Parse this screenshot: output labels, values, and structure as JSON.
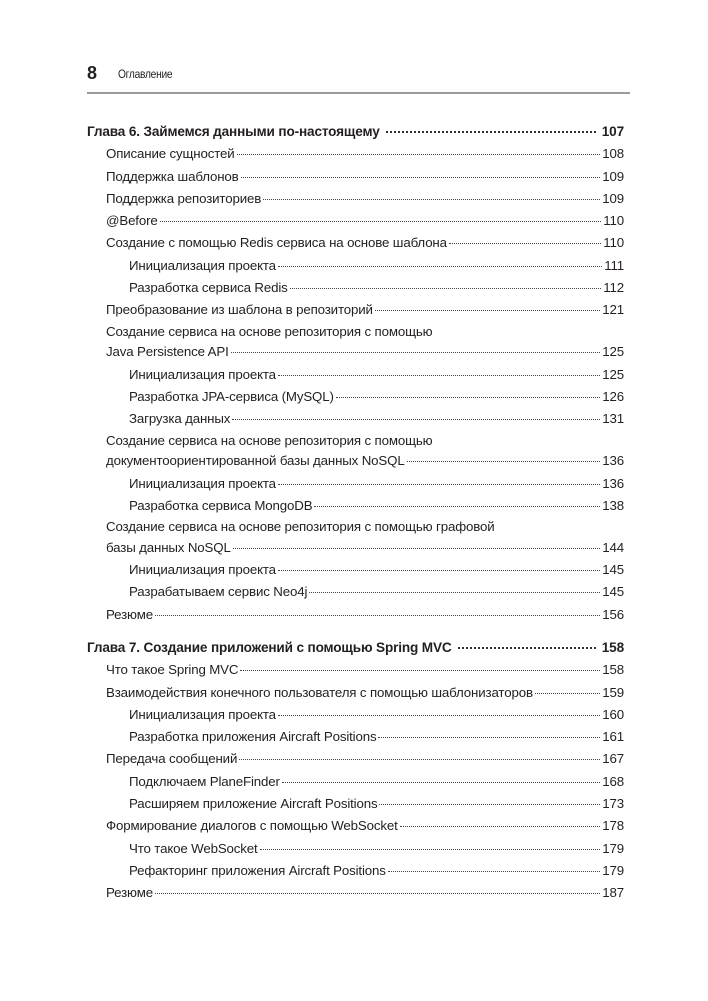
{
  "header": {
    "page_number": "8",
    "running_title": "Оглавление"
  },
  "chapters": [
    {
      "title": "Глава 6. Займемся данными по-настоящему",
      "page": "107",
      "entries": [
        {
          "level": 1,
          "title": "Описание сущностей",
          "page": "108"
        },
        {
          "level": 1,
          "title": "Поддержка шаблонов",
          "page": "109"
        },
        {
          "level": 1,
          "title": "Поддержка репозиториев",
          "page": "109"
        },
        {
          "level": 1,
          "title": "@Before",
          "page": "110"
        },
        {
          "level": 1,
          "title": "Создание с помощью Redis сервиса на основе шаблона",
          "page": "110"
        },
        {
          "level": 2,
          "title": "Инициализация проекта",
          "page": "111"
        },
        {
          "level": 2,
          "title": "Разработка сервиса Redis",
          "page": "112"
        },
        {
          "level": 1,
          "title": "Преобразование из шаблона в репозиторий",
          "page": "121"
        },
        {
          "level": 1,
          "title_line1": "Создание сервиса на основе репозитория с помощью",
          "title": "Java Persistence API",
          "page": "125"
        },
        {
          "level": 2,
          "title": "Инициализация проекта",
          "page": "125"
        },
        {
          "level": 2,
          "title": "Разработка JPA-сервиса (MySQL)",
          "page": "126"
        },
        {
          "level": 2,
          "title": "Загрузка данных",
          "page": "131"
        },
        {
          "level": 1,
          "title_line1": "Создание сервиса на основе репозитория с помощью",
          "title": "документоориентированной базы данных NoSQL",
          "page": "136"
        },
        {
          "level": 2,
          "title": "Инициализация проекта",
          "page": "136"
        },
        {
          "level": 2,
          "title": "Разработка сервиса MongoDB",
          "page": "138"
        },
        {
          "level": 1,
          "title_line1": "Создание сервиса на основе репозитория с помощью графовой",
          "title": "базы данных NoSQL",
          "page": "144"
        },
        {
          "level": 2,
          "title": "Инициализация проекта",
          "page": "145"
        },
        {
          "level": 2,
          "title": "Разрабатываем сервис Neo4j",
          "page": "145"
        },
        {
          "level": 1,
          "title": "Резюме",
          "page": "156"
        }
      ]
    },
    {
      "title": "Глава 7. Создание приложений с помощью Spring MVC",
      "page": "158",
      "entries": [
        {
          "level": 1,
          "title": "Что такое Spring MVC",
          "page": "158"
        },
        {
          "level": 1,
          "title": "Взаимодействия конечного пользователя с помощью шаблонизаторов",
          "page": "159"
        },
        {
          "level": 2,
          "title": "Инициализация проекта",
          "page": "160"
        },
        {
          "level": 2,
          "title": "Разработка приложения Aircraft Positions",
          "page": "161"
        },
        {
          "level": 1,
          "title": "Передача сообщений",
          "page": "167"
        },
        {
          "level": 2,
          "title": "Подключаем PlaneFinder",
          "page": "168"
        },
        {
          "level": 2,
          "title": "Расширяем приложение Aircraft Positions",
          "page": "173"
        },
        {
          "level": 1,
          "title": "Формирование диалогов с помощью WebSocket",
          "page": "178"
        },
        {
          "level": 2,
          "title": "Что такое WebSocket",
          "page": "179"
        },
        {
          "level": 2,
          "title": "Рефакторинг приложения Aircraft Positions",
          "page": "179"
        },
        {
          "level": 1,
          "title": "Резюме",
          "page": "187"
        }
      ]
    }
  ]
}
